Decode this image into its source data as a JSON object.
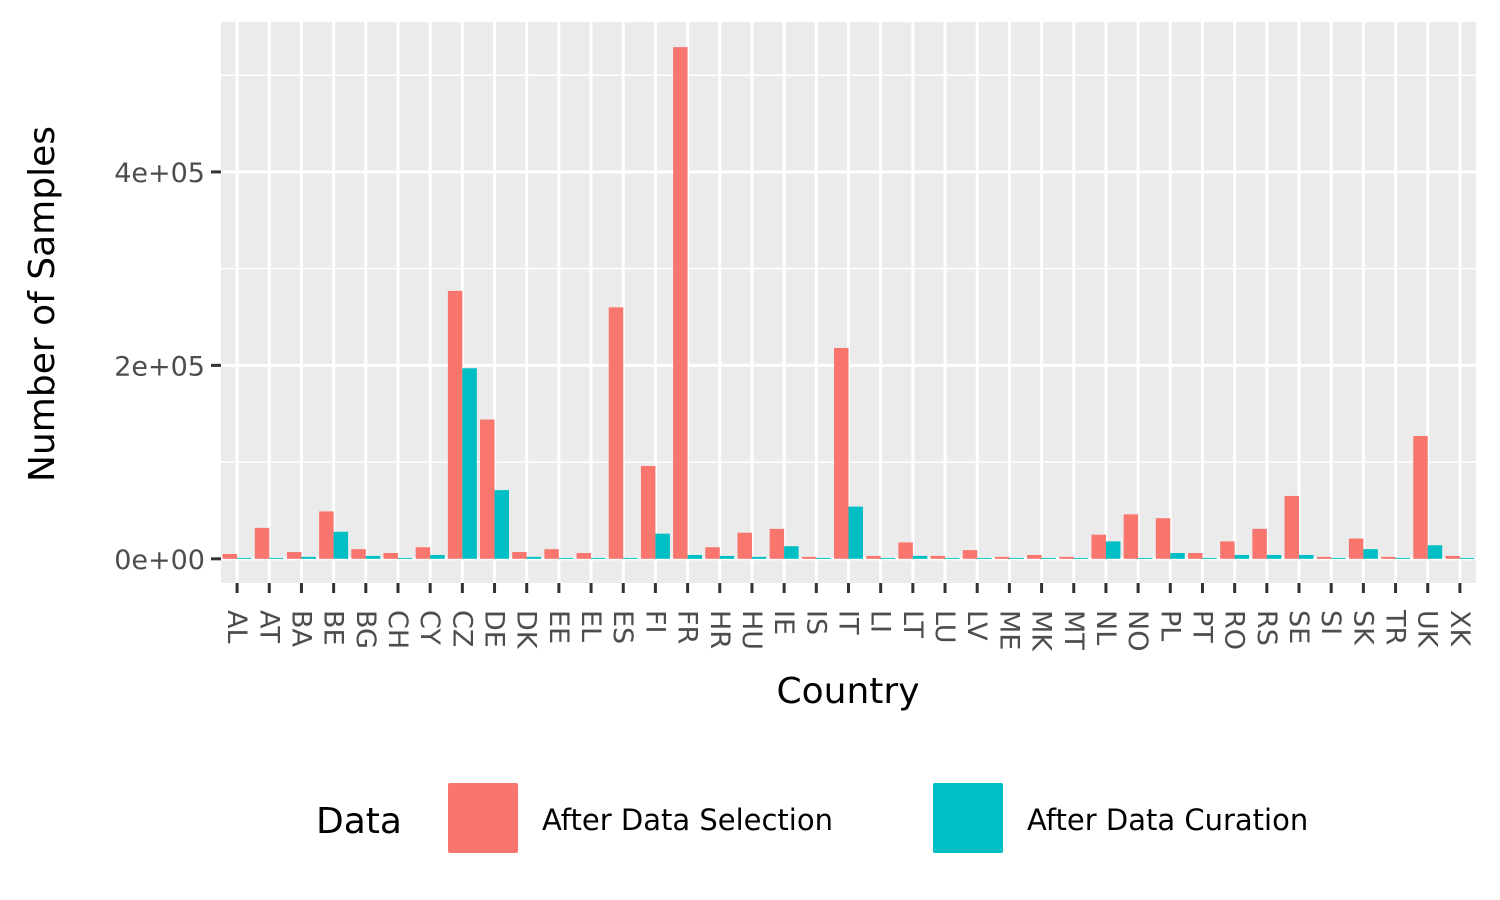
{
  "chart_data": {
    "type": "bar",
    "xlabel": "Country",
    "ylabel": "Number of Samples",
    "ylim": [
      -25000,
      555000
    ],
    "y_ticks": [
      0,
      200000,
      400000
    ],
    "y_tick_labels": [
      "0e+00",
      "2e+05",
      "4e+05"
    ],
    "grid": true,
    "legend_position": "bottom",
    "legend_title": "Data",
    "categories": [
      "AL",
      "AT",
      "BA",
      "BE",
      "BG",
      "CH",
      "CY",
      "CZ",
      "DE",
      "DK",
      "EE",
      "EL",
      "ES",
      "FI",
      "FR",
      "HR",
      "HU",
      "IE",
      "IS",
      "IT",
      "LI",
      "LT",
      "LU",
      "LV",
      "ME",
      "MK",
      "MT",
      "NL",
      "NO",
      "PL",
      "PT",
      "RO",
      "RS",
      "SE",
      "SI",
      "SK",
      "TR",
      "UK",
      "XK"
    ],
    "series": [
      {
        "name": "After Data Selection",
        "color": "#F8766D",
        "values": [
          5000,
          32000,
          7000,
          49000,
          10000,
          6000,
          12000,
          277000,
          144000,
          7000,
          10000,
          6000,
          260000,
          96000,
          529000,
          12000,
          27000,
          31000,
          2000,
          218000,
          3000,
          17000,
          3000,
          9000,
          2000,
          4000,
          2000,
          25000,
          46000,
          42000,
          6000,
          18000,
          31000,
          65000,
          2000,
          21000,
          2000,
          127000,
          3000
        ]
      },
      {
        "name": "After Data Curation",
        "color": "#00BFC4",
        "values": [
          1000,
          1000,
          2000,
          28000,
          3000,
          1000,
          4000,
          197000,
          71000,
          2000,
          1000,
          1000,
          1000,
          26000,
          4000,
          3000,
          2000,
          13000,
          1000,
          54000,
          1000,
          3000,
          1000,
          1000,
          1000,
          1000,
          1000,
          18000,
          1000,
          6000,
          1000,
          4000,
          4000,
          4000,
          1000,
          10000,
          1000,
          14000,
          1000
        ]
      }
    ]
  }
}
